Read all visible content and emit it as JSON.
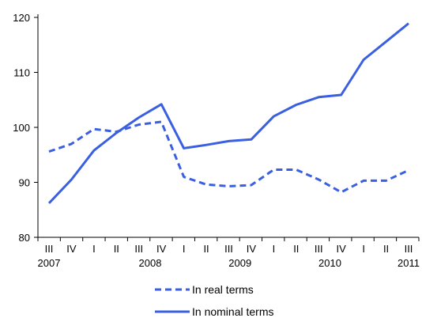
{
  "chart_data": {
    "type": "line",
    "title": "",
    "xlabel": "",
    "ylabel": "",
    "ylim": [
      80,
      120
    ],
    "yticks": [
      80,
      90,
      100,
      110,
      120
    ],
    "grid": false,
    "legend_position": "bottom-center",
    "x_quarters": [
      "III",
      "IV",
      "I",
      "II",
      "III",
      "IV",
      "I",
      "II",
      "III",
      "IV",
      "I",
      "II",
      "III",
      "IV",
      "I",
      "II",
      "III"
    ],
    "x_years": [
      {
        "label": "2007",
        "index": 0
      },
      {
        "label": "2008",
        "index": 4.5
      },
      {
        "label": "2009",
        "index": 8.5
      },
      {
        "label": "2010",
        "index": 12.5
      },
      {
        "label": "2011",
        "index": 16
      }
    ],
    "series": [
      {
        "name": "In real terms",
        "style": "dashed",
        "color": "#3a5fe0",
        "values": [
          95.6,
          97.0,
          99.7,
          99.2,
          100.5,
          101.0,
          91.0,
          89.6,
          89.3,
          89.5,
          92.3,
          92.3,
          90.5,
          88.2,
          90.3,
          90.3,
          92.2
        ]
      },
      {
        "name": "In nominal terms",
        "style": "solid",
        "color": "#3a5fe0",
        "values": [
          86.2,
          90.5,
          95.8,
          99.0,
          101.8,
          104.2,
          96.2,
          96.8,
          97.5,
          97.8,
          102.0,
          104.1,
          105.5,
          105.9,
          112.3,
          115.6,
          118.9
        ]
      }
    ]
  }
}
